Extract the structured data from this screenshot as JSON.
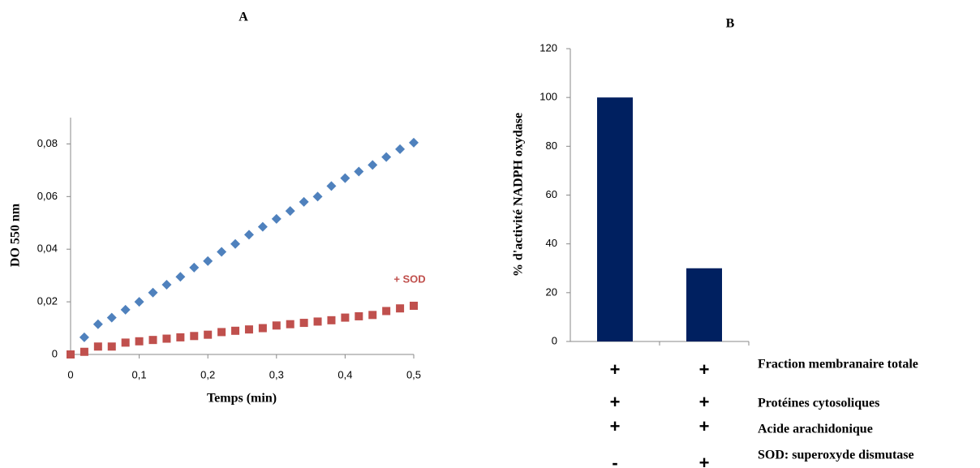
{
  "chart_data": [
    {
      "type": "scatter",
      "title": "A",
      "x_label": "Temps (min)",
      "y_label": "DO 550 nm",
      "annotation": "+ SOD",
      "xlim": [
        0,
        0.5
      ],
      "ylim": [
        0,
        0.09
      ],
      "xticks": [
        {
          "value": 0,
          "label": "0"
        },
        {
          "value": 0.1,
          "label": "0,1"
        },
        {
          "value": 0.2,
          "label": "0,2"
        },
        {
          "value": 0.3,
          "label": "0,3"
        },
        {
          "value": 0.4,
          "label": "0,4"
        },
        {
          "value": 0.5,
          "label": "0,5"
        }
      ],
      "yticks": [
        {
          "value": 0,
          "label": "0"
        },
        {
          "value": 0.02,
          "label": "0,02"
        },
        {
          "value": 0.04,
          "label": "0,04"
        },
        {
          "value": 0.06,
          "label": "0,06"
        },
        {
          "value": 0.08,
          "label": "0,08"
        }
      ],
      "series": [
        {
          "color": "#4f81bd",
          "marker": "diamond",
          "x": [
            0.02,
            0.04,
            0.06,
            0.08,
            0.1,
            0.12,
            0.14,
            0.16,
            0.18,
            0.2,
            0.22,
            0.24,
            0.26,
            0.28,
            0.3,
            0.32,
            0.34,
            0.36,
            0.38,
            0.4,
            0.42,
            0.44,
            0.46,
            0.48,
            0.5
          ],
          "values": [
            0.0065,
            0.0115,
            0.014,
            0.017,
            0.02,
            0.0235,
            0.0265,
            0.0295,
            0.033,
            0.0355,
            0.039,
            0.042,
            0.0455,
            0.0485,
            0.0515,
            0.0545,
            0.058,
            0.06,
            0.064,
            0.067,
            0.0695,
            0.072,
            0.075,
            0.078,
            0.0805
          ]
        },
        {
          "color": "#c0504d",
          "marker": "square",
          "x": [
            0,
            0.02,
            0.04,
            0.06,
            0.08,
            0.1,
            0.12,
            0.14,
            0.16,
            0.18,
            0.2,
            0.22,
            0.24,
            0.26,
            0.28,
            0.3,
            0.32,
            0.34,
            0.36,
            0.38,
            0.4,
            0.42,
            0.44,
            0.46,
            0.48,
            0.5
          ],
          "values": [
            0,
            0.001,
            0.003,
            0.003,
            0.0045,
            0.005,
            0.0055,
            0.006,
            0.0065,
            0.007,
            0.0075,
            0.0085,
            0.009,
            0.0095,
            0.01,
            0.011,
            0.0115,
            0.012,
            0.0125,
            0.013,
            0.014,
            0.0145,
            0.015,
            0.0165,
            0.0175,
            0.0185
          ]
        }
      ]
    },
    {
      "type": "bar",
      "title": "B",
      "y_label": "% d'activité NADPH oxydase",
      "categories": [
        null,
        null
      ],
      "values": [
        100,
        30
      ],
      "color": "#002060",
      "ylim": [
        0,
        120
      ],
      "yticks": [
        0,
        20,
        40,
        60,
        80,
        100,
        120
      ],
      "table": {
        "rows": [
          {
            "label": "Fraction membranaire totale",
            "signs": [
              "+",
              "+"
            ]
          },
          {
            "label": "Protéines cytosoliques",
            "signs": [
              "+",
              "+"
            ]
          },
          {
            "label": "Acide arachidonique",
            "signs": [
              "+",
              "+"
            ]
          },
          {
            "label": "SOD: superoxyde dismutase",
            "signs": [
              "-",
              "+"
            ]
          }
        ]
      }
    }
  ]
}
